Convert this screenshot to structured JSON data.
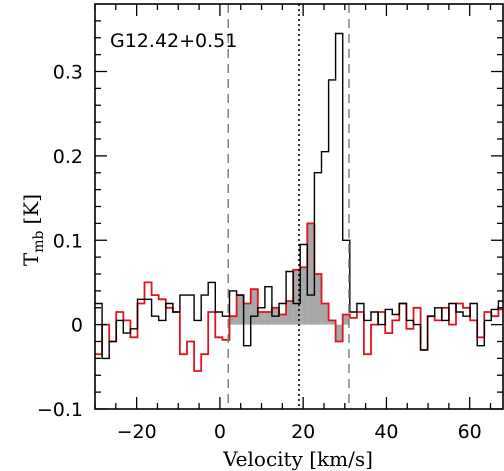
{
  "chart_data": {
    "type": "line",
    "title": "G12.42+0.51",
    "xlabel": "Velocity [km/s]",
    "ylabel_main": "T",
    "ylabel_sub": "mb",
    "ylabel_unit": "[K]",
    "xlim": [
      -30,
      68
    ],
    "ylim": [
      -0.1,
      0.38
    ],
    "xticks": [
      -20,
      0,
      20,
      40,
      60
    ],
    "xtick_labels": [
      "−20",
      "0",
      "20",
      "40",
      "60"
    ],
    "yticks": [
      -0.1,
      0,
      0.1,
      0.2,
      0.3
    ],
    "ytick_labels": [
      "−0.1",
      "0",
      "0.1",
      "0.2",
      "0.3"
    ],
    "vlines_dashed": [
      2,
      31
    ],
    "vline_dotted": 19,
    "series": [
      {
        "color": "#000000",
        "step_x": [
          -30.0,
          -28.3,
          -26.6,
          -24.9,
          -23.2,
          -21.5,
          -19.8,
          -18.1,
          -16.4,
          -14.7,
          -13.0,
          -11.3,
          -9.6,
          -7.9,
          -6.2,
          -4.5,
          -2.8,
          -1.1,
          0.6,
          2.3,
          4.0,
          5.7,
          7.4,
          9.1,
          10.8,
          12.5,
          14.2,
          15.9,
          17.6,
          19.3,
          21.0,
          22.7,
          24.4,
          26.1,
          27.8,
          29.5,
          31.2,
          32.9,
          34.6,
          36.3,
          38.0,
          39.7,
          41.4,
          43.1,
          44.8,
          46.5,
          48.2,
          49.9,
          51.6,
          53.3,
          55.0,
          56.7,
          58.4,
          60.1,
          61.8,
          63.5,
          65.2,
          66.9,
          68.0
        ],
        "values": [
          0.025,
          -0.04,
          -0.02,
          0.005,
          -0.01,
          -0.005,
          0.03,
          0.03,
          0.01,
          0.005,
          0.025,
          0.015,
          0.035,
          0.035,
          0.005,
          0.035,
          0.05,
          0.015,
          0.01,
          0.04,
          0.035,
          -0.025,
          0.01,
          0.02,
          0.045,
          0.01,
          0.025,
          0.063,
          0.025,
          0.095,
          0.035,
          0.18,
          0.205,
          0.29,
          0.345,
          0.1,
          0.015,
          0.025,
          0.005,
          0.015,
          0.0,
          0.018,
          0.012,
          0.025,
          0.005,
          0.0,
          -0.03,
          0.01,
          0.02,
          0.005,
          0.025,
          0.015,
          0.01,
          0.025,
          -0.025,
          0.005,
          0.018,
          0.028
        ],
        "step_x_note": ""
      },
      {
        "color": "#e0141e",
        "step_x": [
          -30.0,
          -28.3,
          -26.6,
          -24.9,
          -23.2,
          -21.5,
          -19.8,
          -18.1,
          -16.4,
          -14.7,
          -13.0,
          -11.3,
          -9.6,
          -7.9,
          -6.2,
          -4.5,
          -2.8,
          -1.1,
          0.6,
          2.3,
          4.0,
          5.7,
          7.4,
          9.1,
          10.8,
          12.5,
          14.2,
          15.9,
          17.6,
          19.3,
          21.0,
          22.7,
          24.4,
          26.1,
          27.8,
          29.5,
          31.2,
          32.9,
          34.6,
          36.3,
          38.0,
          39.7,
          41.4,
          43.1,
          44.8,
          46.5,
          48.2,
          49.9,
          51.6,
          53.3,
          55.0,
          56.7,
          58.4,
          60.1,
          61.8,
          63.5,
          65.2,
          66.9,
          68.0
        ],
        "values": [
          -0.035,
          0.0,
          -0.02,
          0.015,
          0.005,
          -0.015,
          0.025,
          0.05,
          0.035,
          0.03,
          0.02,
          0.015,
          -0.035,
          -0.02,
          -0.055,
          -0.035,
          0.015,
          -0.015,
          -0.018,
          0.01,
          0.035,
          0.025,
          0.042,
          0.015,
          0.015,
          0.02,
          0.012,
          0.028,
          0.065,
          0.068,
          0.12,
          0.06,
          0.025,
          0.005,
          -0.02,
          0.012,
          0.008,
          0.015,
          -0.035,
          0.0,
          0.015,
          -0.01,
          0.005,
          0.025,
          -0.005,
          0.02,
          -0.03,
          0.01,
          0.005,
          0.02,
          0.0,
          0.025,
          0.02,
          0.005,
          -0.015,
          0.015,
          0.01,
          0.018
        ]
      }
    ]
  }
}
